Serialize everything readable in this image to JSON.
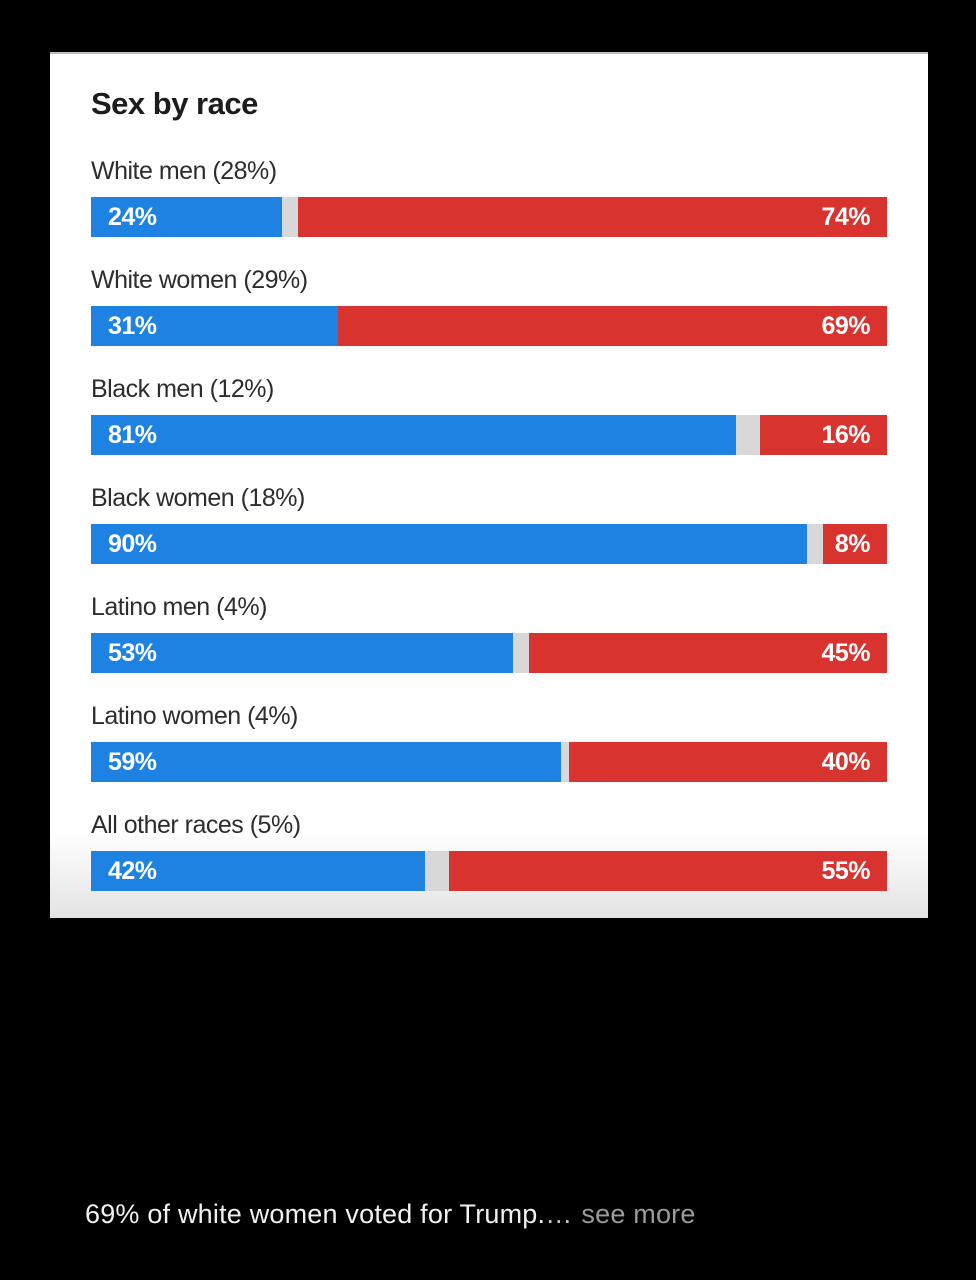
{
  "chart": {
    "title": "Sex by race",
    "colors": {
      "blue": "#1d82e2",
      "red": "#d93330",
      "track": "#d8d8d8",
      "card_bg": "#ffffff",
      "page_bg": "#000000"
    },
    "rows": [
      {
        "label": "White men (28%)",
        "blue_pct": 24,
        "red_pct": 74,
        "blue_label": "24%",
        "red_label": "74%"
      },
      {
        "label": "White women (29%)",
        "blue_pct": 31,
        "red_pct": 69,
        "blue_label": "31%",
        "red_label": "69%"
      },
      {
        "label": "Black men (12%)",
        "blue_pct": 81,
        "red_pct": 16,
        "blue_label": "81%",
        "red_label": "16%"
      },
      {
        "label": "Black women (18%)",
        "blue_pct": 90,
        "red_pct": 8,
        "blue_label": "90%",
        "red_label": "8%"
      },
      {
        "label": "Latino men (4%)",
        "blue_pct": 53,
        "red_pct": 45,
        "blue_label": "53%",
        "red_label": "45%"
      },
      {
        "label": "Latino women (4%)",
        "blue_pct": 59,
        "red_pct": 40,
        "blue_label": "59%",
        "red_label": "40%"
      },
      {
        "label": "All other races (5%)",
        "blue_pct": 42,
        "red_pct": 55,
        "blue_label": "42%",
        "red_label": "55%"
      }
    ]
  },
  "caption": {
    "text": "69% of white women voted for Trump.",
    "ellipsis": "…",
    "see_more": "see more"
  },
  "chart_data": {
    "type": "bar",
    "orientation": "horizontal",
    "stacked": true,
    "title": "Sex by race",
    "categories": [
      "White men (28%)",
      "White women (29%)",
      "Black men (12%)",
      "Black women (18%)",
      "Latino men (4%)",
      "Latino women (4%)",
      "All other races (5%)"
    ],
    "series": [
      {
        "name": "blue",
        "color": "#1d82e2",
        "values": [
          24,
          31,
          81,
          90,
          53,
          59,
          42
        ]
      },
      {
        "name": "red",
        "color": "#d93330",
        "values": [
          74,
          69,
          16,
          8,
          45,
          40,
          55
        ]
      }
    ],
    "xlim": [
      0,
      100
    ],
    "xlabel": "",
    "ylabel": "",
    "grid": false,
    "legend": "none",
    "data_labels": "inside-ends"
  }
}
